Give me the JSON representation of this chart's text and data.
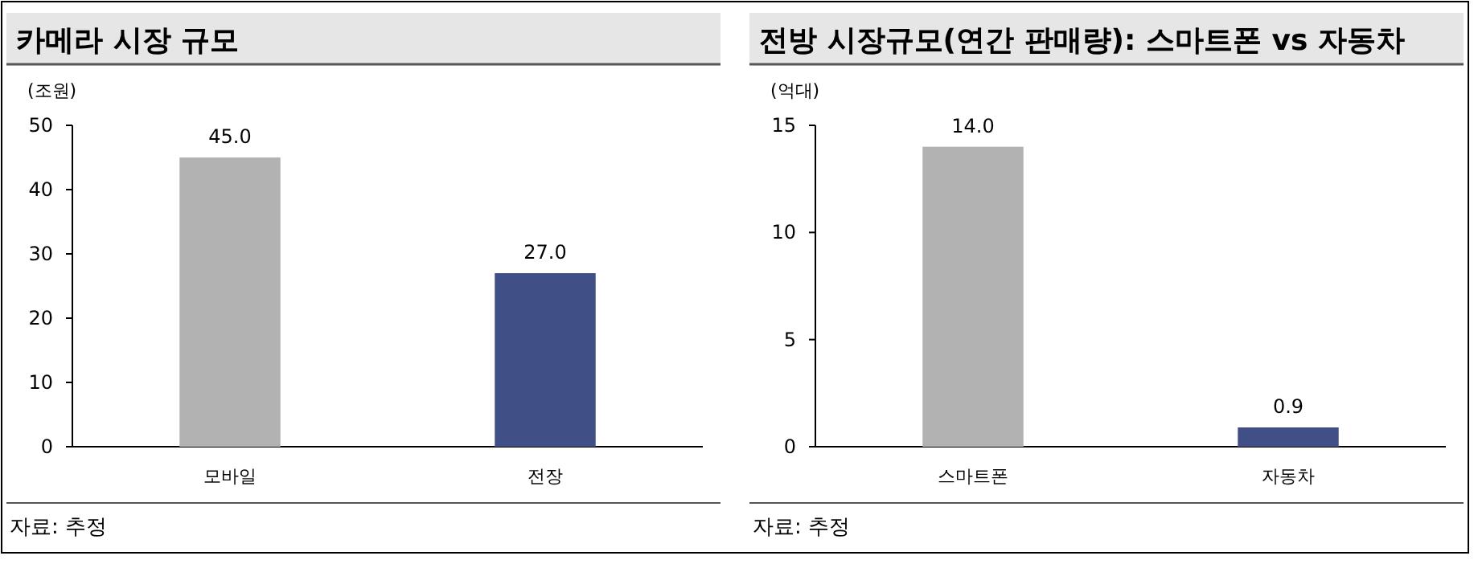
{
  "chart_data": [
    {
      "type": "bar",
      "title": "카메라 시장 규모",
      "ylabel": "(조원)",
      "categories": [
        "모바일",
        "전장"
      ],
      "values": [
        45.0,
        27.0
      ],
      "value_labels": [
        "45.0",
        "27.0"
      ],
      "colors": [
        "#b2b2b2",
        "#404f85"
      ],
      "ylim": [
        0,
        50
      ],
      "yticks": [
        0,
        10,
        20,
        30,
        40,
        50
      ],
      "annotations": [
        "자료: 추정"
      ]
    },
    {
      "type": "bar",
      "title": "전방 시장규모(연간 판매량): 스마트폰 vs 자동차",
      "ylabel": "(억대)",
      "categories": [
        "스마트폰",
        "자동차"
      ],
      "values": [
        14.0,
        0.9
      ],
      "value_labels": [
        "14.0",
        "0.9"
      ],
      "colors": [
        "#b2b2b2",
        "#404f85"
      ],
      "ylim": [
        0,
        15
      ],
      "yticks": [
        0,
        5,
        10,
        15
      ],
      "annotations": [
        "자료: 추정"
      ]
    }
  ]
}
